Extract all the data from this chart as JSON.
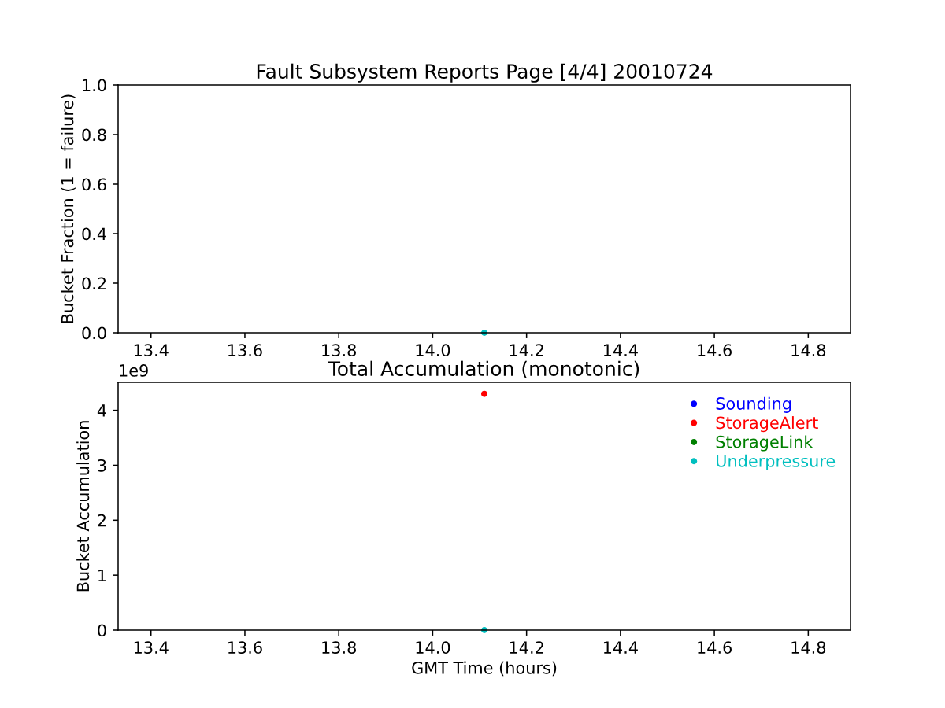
{
  "chart_data": [
    {
      "type": "scatter",
      "title": "Fault Subsystem Reports Page [4/4] 20010724",
      "ylabel": "Bucket Fraction (1 = failure)",
      "x": [
        14.11
      ],
      "series": [
        {
          "color": "#00bfbf",
          "values": [
            0
          ]
        }
      ],
      "xlim": [
        13.33,
        14.89
      ],
      "xticks": [
        13.4,
        13.6,
        13.8,
        {
          "value": 14,
          "label": "14.0"
        },
        14.2,
        14.4,
        14.6,
        14.8
      ],
      "ylim": [
        0,
        1
      ],
      "yticks": [
        {
          "value": 0,
          "label": "0.0"
        },
        0.2,
        0.4,
        0.6,
        0.8,
        {
          "value": 1,
          "label": "1.0"
        }
      ],
      "marker": "circle"
    },
    {
      "type": "scatter",
      "title": "Total Accumulation (monotonic)",
      "xlabel": "GMT Time (hours)",
      "ylabel": "Bucket Accumulation",
      "x": [
        14.11
      ],
      "series": [
        {
          "name": "Sounding",
          "color": "#0000ff",
          "values": [
            null
          ]
        },
        {
          "name": "StorageAlert",
          "color": "#ff0000",
          "values": [
            4.3
          ]
        },
        {
          "name": "StorageLink",
          "color": "#008000",
          "values": [
            null
          ]
        },
        {
          "name": "Underpressure",
          "color": "#00bfbf",
          "values": [
            0
          ]
        }
      ],
      "xlim": [
        13.33,
        14.89
      ],
      "xticks": [
        13.4,
        13.6,
        13.8,
        {
          "value": 14,
          "label": "14.0"
        },
        14.2,
        14.4,
        14.6,
        14.8
      ],
      "ylim": [
        0,
        4.51
      ],
      "yticks": [
        0,
        1,
        2,
        3,
        4
      ],
      "annotations": [
        "1e9"
      ],
      "legend": "top right",
      "marker": "circle"
    }
  ]
}
